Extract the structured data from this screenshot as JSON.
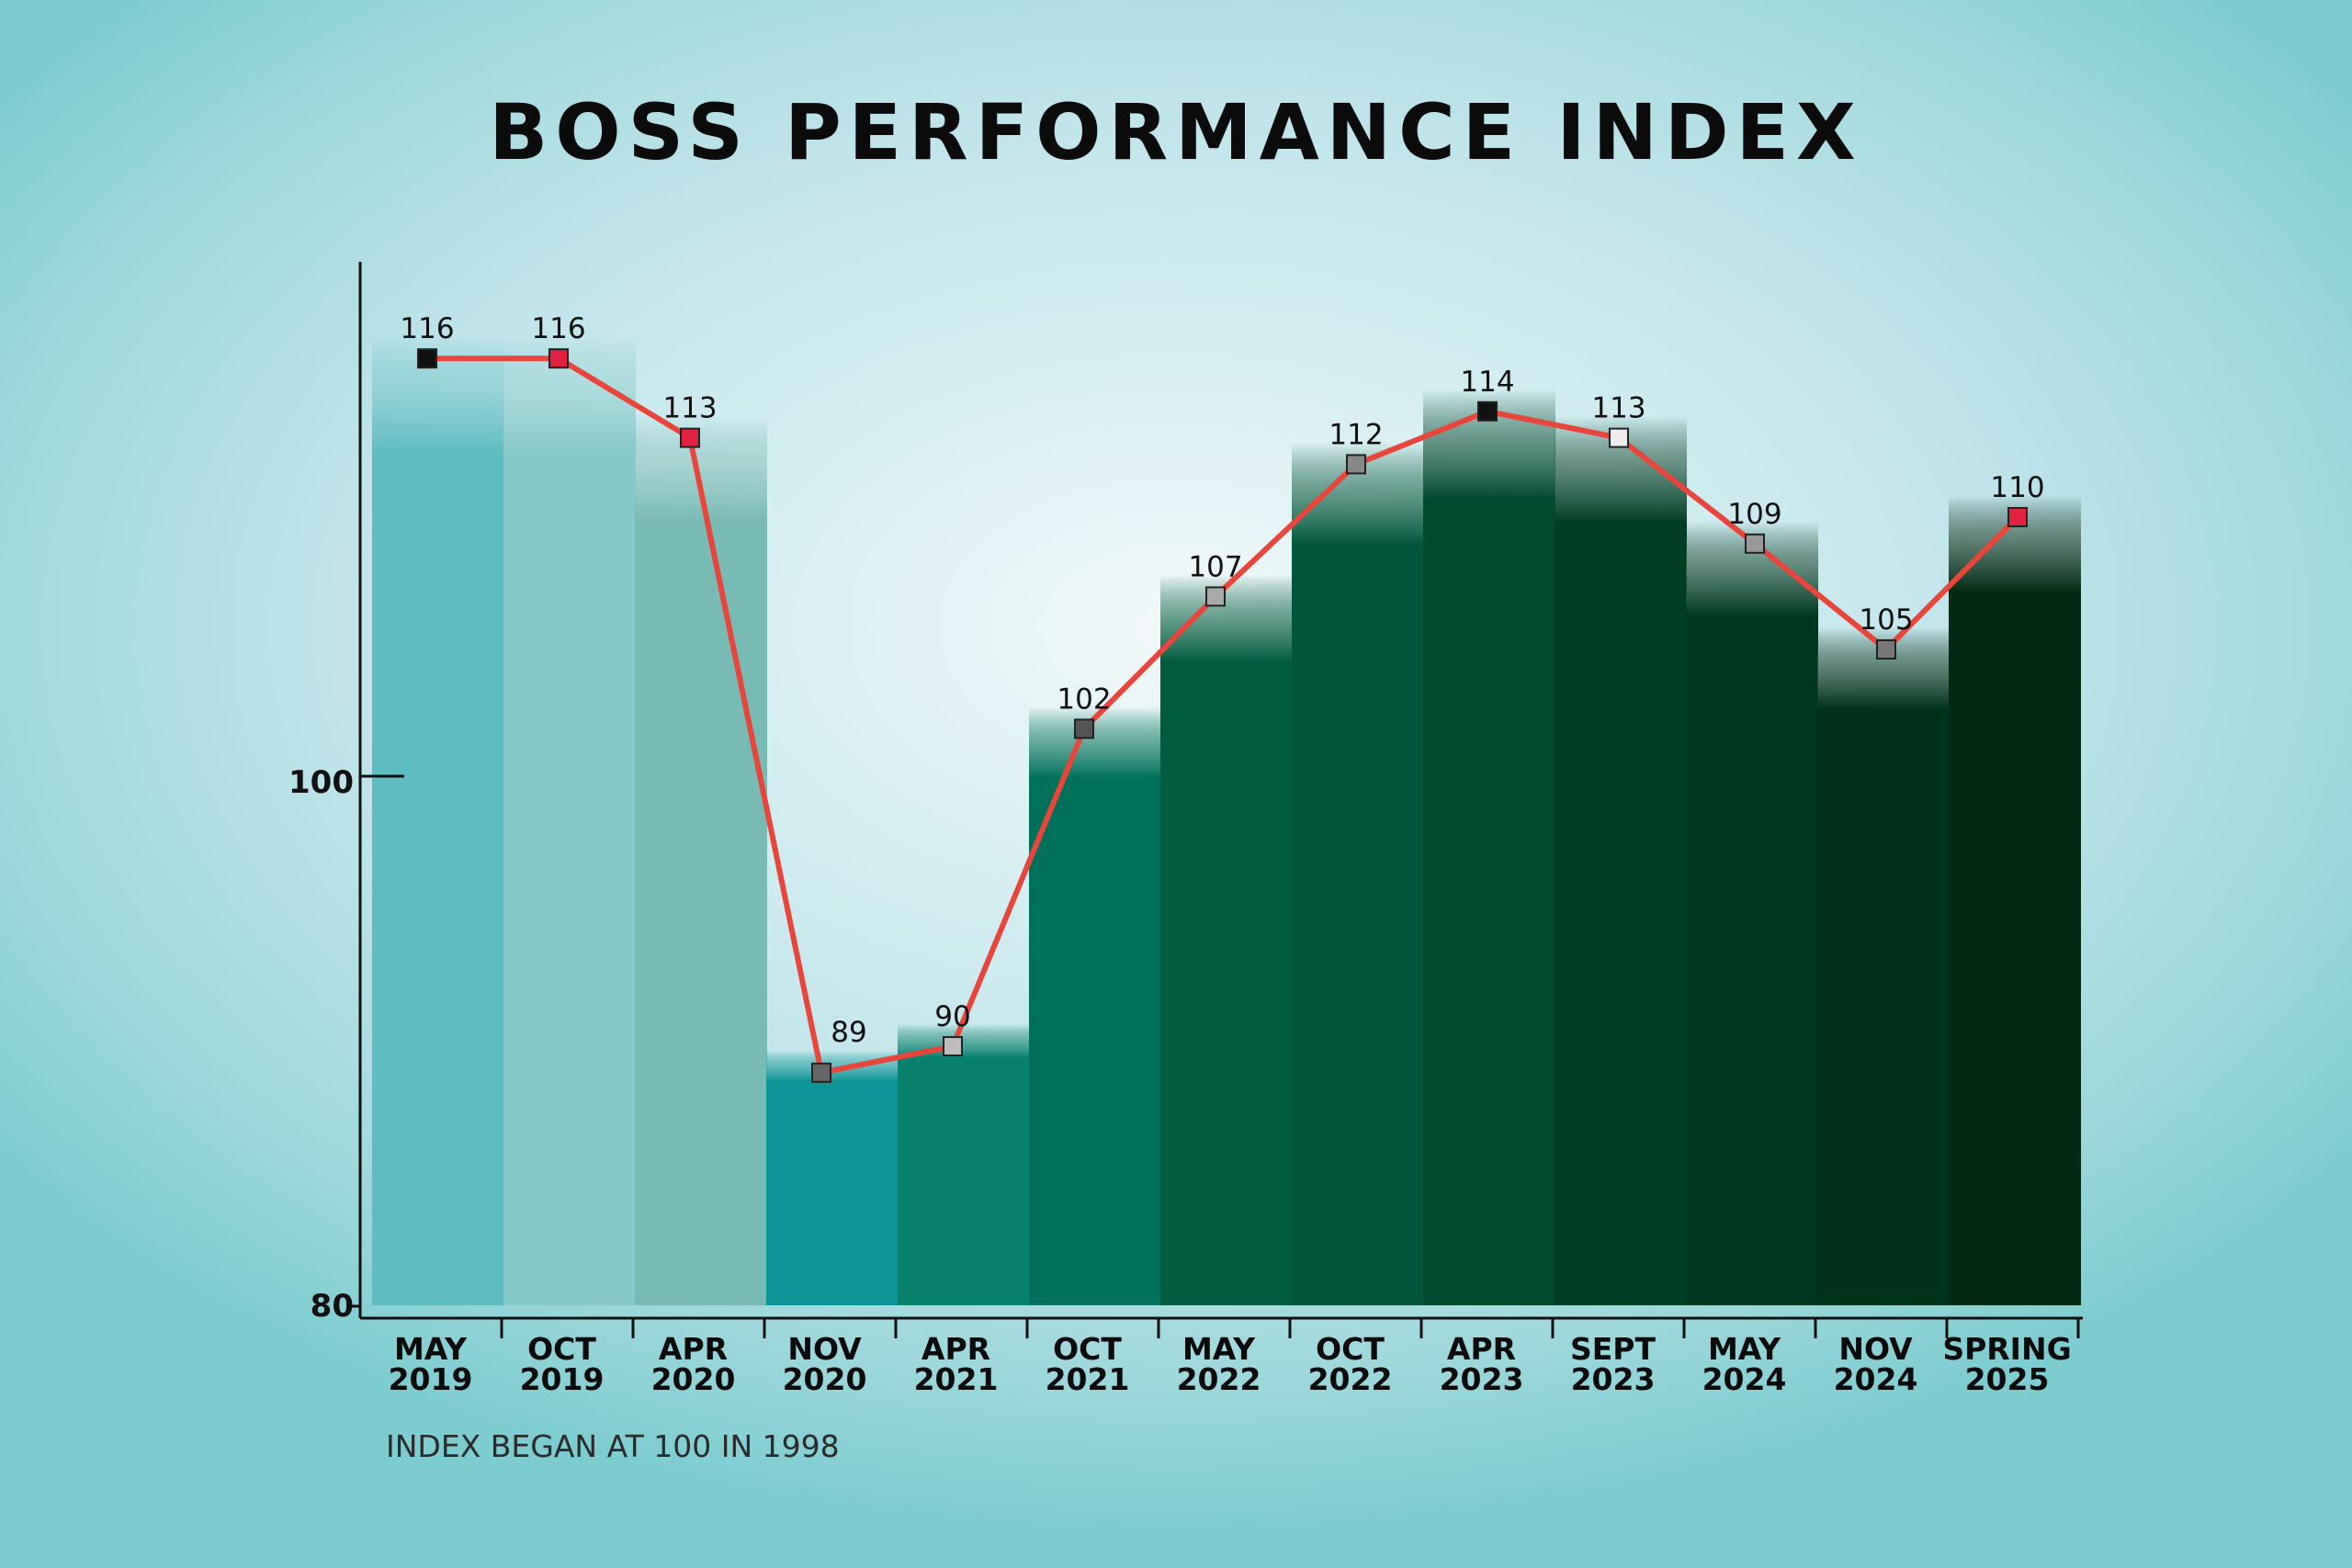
{
  "title": "BOSS PERFORMANCE INDEX",
  "footnote": "INDEX BEGAN AT 100 IN 1998",
  "chart_data": {
    "type": "bar",
    "title": "BOSS PERFORMANCE INDEX",
    "xlabel": "",
    "ylabel": "",
    "ylim": [
      80,
      118
    ],
    "yticks": [
      80,
      100
    ],
    "grid": false,
    "categories": [
      [
        "MAY",
        "2019"
      ],
      [
        "OCT",
        "2019"
      ],
      [
        "APR",
        "2020"
      ],
      [
        "NOV",
        "2020"
      ],
      [
        "APR",
        "2021"
      ],
      [
        "OCT",
        "2021"
      ],
      [
        "MAY",
        "2022"
      ],
      [
        "OCT",
        "2022"
      ],
      [
        "APR",
        "2023"
      ],
      [
        "SEPT",
        "2023"
      ],
      [
        "MAY",
        "2024"
      ],
      [
        "NOV",
        "2024"
      ],
      [
        "SPRING",
        "2025"
      ]
    ],
    "values": [
      116,
      116,
      113,
      89,
      90,
      102,
      107,
      112,
      114,
      113,
      109,
      105,
      110
    ],
    "line_color": "#e8453c",
    "bar_colors": [
      "#5fbcc1",
      "#86c9c9",
      "#78bab4",
      "#0d9496",
      "#07806d",
      "#00705a",
      "#005b3f",
      "#00553a",
      "#004a2e",
      "#003e24",
      "#00381f",
      "#00311a",
      "#002a12"
    ],
    "marker_colors": [
      "#111111",
      "#e0213f",
      "#e0213f",
      "#666666",
      "#bdbdbd",
      "#555555",
      "#a9a9a9",
      "#888888",
      "#111111",
      "#ececec",
      "#999999",
      "#777777",
      "#e0213f"
    ]
  }
}
